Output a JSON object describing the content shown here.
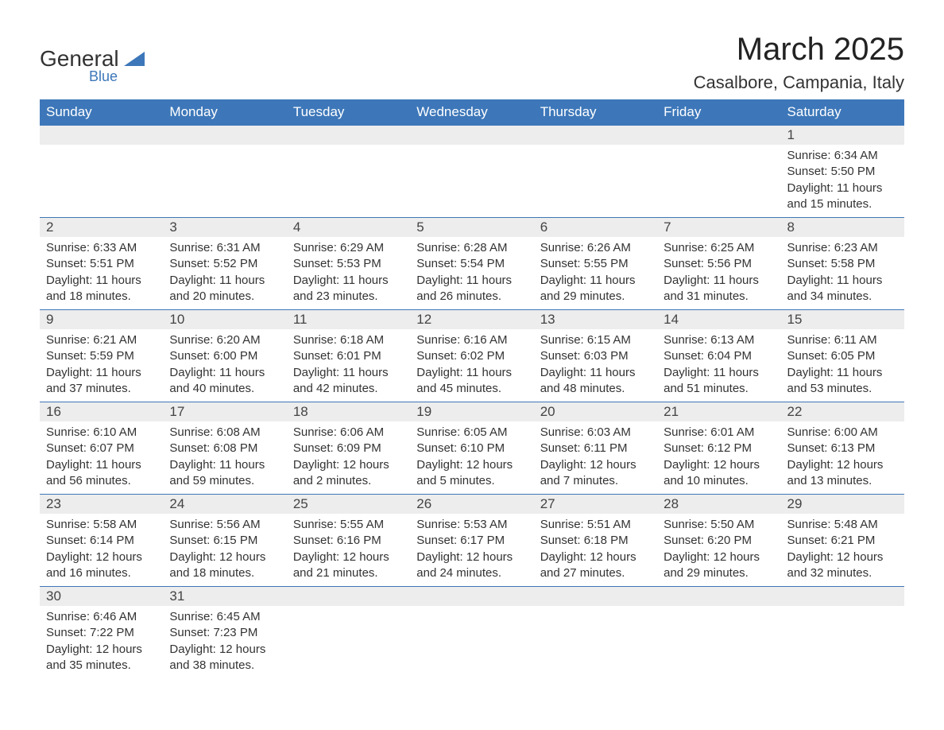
{
  "logo": {
    "text": "General",
    "sub": "Blue",
    "shape_color": "#3d77b9"
  },
  "title": "March 2025",
  "location": "Casalbore, Campania, Italy",
  "colors": {
    "header_bg": "#3d77b9",
    "header_text": "#ffffff",
    "row_separator": "#3d77b9",
    "daynum_bg": "#ededed",
    "text": "#333333",
    "title_fontsize": 40,
    "location_fontsize": 22,
    "th_fontsize": 17,
    "cell_fontsize": 15
  },
  "weekdays": [
    "Sunday",
    "Monday",
    "Tuesday",
    "Wednesday",
    "Thursday",
    "Friday",
    "Saturday"
  ],
  "weeks": [
    [
      null,
      null,
      null,
      null,
      null,
      null,
      {
        "n": "1",
        "sunrise": "Sunrise: 6:34 AM",
        "sunset": "Sunset: 5:50 PM",
        "daylight": "Daylight: 11 hours and 15 minutes."
      }
    ],
    [
      {
        "n": "2",
        "sunrise": "Sunrise: 6:33 AM",
        "sunset": "Sunset: 5:51 PM",
        "daylight": "Daylight: 11 hours and 18 minutes."
      },
      {
        "n": "3",
        "sunrise": "Sunrise: 6:31 AM",
        "sunset": "Sunset: 5:52 PM",
        "daylight": "Daylight: 11 hours and 20 minutes."
      },
      {
        "n": "4",
        "sunrise": "Sunrise: 6:29 AM",
        "sunset": "Sunset: 5:53 PM",
        "daylight": "Daylight: 11 hours and 23 minutes."
      },
      {
        "n": "5",
        "sunrise": "Sunrise: 6:28 AM",
        "sunset": "Sunset: 5:54 PM",
        "daylight": "Daylight: 11 hours and 26 minutes."
      },
      {
        "n": "6",
        "sunrise": "Sunrise: 6:26 AM",
        "sunset": "Sunset: 5:55 PM",
        "daylight": "Daylight: 11 hours and 29 minutes."
      },
      {
        "n": "7",
        "sunrise": "Sunrise: 6:25 AM",
        "sunset": "Sunset: 5:56 PM",
        "daylight": "Daylight: 11 hours and 31 minutes."
      },
      {
        "n": "8",
        "sunrise": "Sunrise: 6:23 AM",
        "sunset": "Sunset: 5:58 PM",
        "daylight": "Daylight: 11 hours and 34 minutes."
      }
    ],
    [
      {
        "n": "9",
        "sunrise": "Sunrise: 6:21 AM",
        "sunset": "Sunset: 5:59 PM",
        "daylight": "Daylight: 11 hours and 37 minutes."
      },
      {
        "n": "10",
        "sunrise": "Sunrise: 6:20 AM",
        "sunset": "Sunset: 6:00 PM",
        "daylight": "Daylight: 11 hours and 40 minutes."
      },
      {
        "n": "11",
        "sunrise": "Sunrise: 6:18 AM",
        "sunset": "Sunset: 6:01 PM",
        "daylight": "Daylight: 11 hours and 42 minutes."
      },
      {
        "n": "12",
        "sunrise": "Sunrise: 6:16 AM",
        "sunset": "Sunset: 6:02 PM",
        "daylight": "Daylight: 11 hours and 45 minutes."
      },
      {
        "n": "13",
        "sunrise": "Sunrise: 6:15 AM",
        "sunset": "Sunset: 6:03 PM",
        "daylight": "Daylight: 11 hours and 48 minutes."
      },
      {
        "n": "14",
        "sunrise": "Sunrise: 6:13 AM",
        "sunset": "Sunset: 6:04 PM",
        "daylight": "Daylight: 11 hours and 51 minutes."
      },
      {
        "n": "15",
        "sunrise": "Sunrise: 6:11 AM",
        "sunset": "Sunset: 6:05 PM",
        "daylight": "Daylight: 11 hours and 53 minutes."
      }
    ],
    [
      {
        "n": "16",
        "sunrise": "Sunrise: 6:10 AM",
        "sunset": "Sunset: 6:07 PM",
        "daylight": "Daylight: 11 hours and 56 minutes."
      },
      {
        "n": "17",
        "sunrise": "Sunrise: 6:08 AM",
        "sunset": "Sunset: 6:08 PM",
        "daylight": "Daylight: 11 hours and 59 minutes."
      },
      {
        "n": "18",
        "sunrise": "Sunrise: 6:06 AM",
        "sunset": "Sunset: 6:09 PM",
        "daylight": "Daylight: 12 hours and 2 minutes."
      },
      {
        "n": "19",
        "sunrise": "Sunrise: 6:05 AM",
        "sunset": "Sunset: 6:10 PM",
        "daylight": "Daylight: 12 hours and 5 minutes."
      },
      {
        "n": "20",
        "sunrise": "Sunrise: 6:03 AM",
        "sunset": "Sunset: 6:11 PM",
        "daylight": "Daylight: 12 hours and 7 minutes."
      },
      {
        "n": "21",
        "sunrise": "Sunrise: 6:01 AM",
        "sunset": "Sunset: 6:12 PM",
        "daylight": "Daylight: 12 hours and 10 minutes."
      },
      {
        "n": "22",
        "sunrise": "Sunrise: 6:00 AM",
        "sunset": "Sunset: 6:13 PM",
        "daylight": "Daylight: 12 hours and 13 minutes."
      }
    ],
    [
      {
        "n": "23",
        "sunrise": "Sunrise: 5:58 AM",
        "sunset": "Sunset: 6:14 PM",
        "daylight": "Daylight: 12 hours and 16 minutes."
      },
      {
        "n": "24",
        "sunrise": "Sunrise: 5:56 AM",
        "sunset": "Sunset: 6:15 PM",
        "daylight": "Daylight: 12 hours and 18 minutes."
      },
      {
        "n": "25",
        "sunrise": "Sunrise: 5:55 AM",
        "sunset": "Sunset: 6:16 PM",
        "daylight": "Daylight: 12 hours and 21 minutes."
      },
      {
        "n": "26",
        "sunrise": "Sunrise: 5:53 AM",
        "sunset": "Sunset: 6:17 PM",
        "daylight": "Daylight: 12 hours and 24 minutes."
      },
      {
        "n": "27",
        "sunrise": "Sunrise: 5:51 AM",
        "sunset": "Sunset: 6:18 PM",
        "daylight": "Daylight: 12 hours and 27 minutes."
      },
      {
        "n": "28",
        "sunrise": "Sunrise: 5:50 AM",
        "sunset": "Sunset: 6:20 PM",
        "daylight": "Daylight: 12 hours and 29 minutes."
      },
      {
        "n": "29",
        "sunrise": "Sunrise: 5:48 AM",
        "sunset": "Sunset: 6:21 PM",
        "daylight": "Daylight: 12 hours and 32 minutes."
      }
    ],
    [
      {
        "n": "30",
        "sunrise": "Sunrise: 6:46 AM",
        "sunset": "Sunset: 7:22 PM",
        "daylight": "Daylight: 12 hours and 35 minutes."
      },
      {
        "n": "31",
        "sunrise": "Sunrise: 6:45 AM",
        "sunset": "Sunset: 7:23 PM",
        "daylight": "Daylight: 12 hours and 38 minutes."
      },
      null,
      null,
      null,
      null,
      null
    ]
  ]
}
